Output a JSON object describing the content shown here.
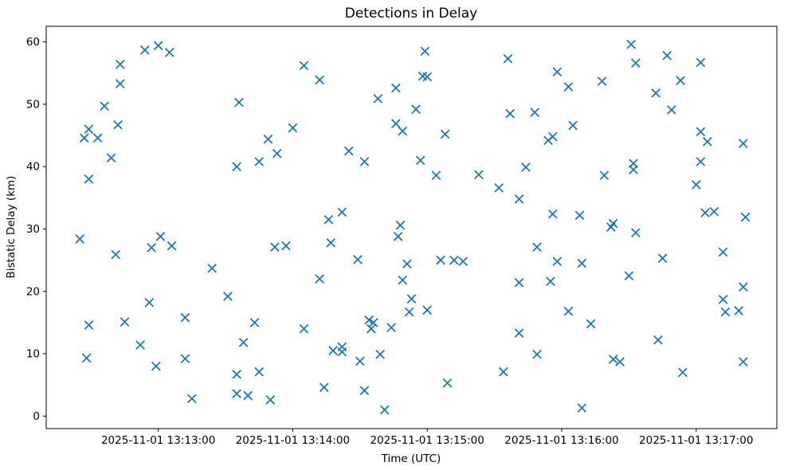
{
  "chart_data": {
    "type": "scatter",
    "title": "Detections in Delay",
    "xlabel": "Time (UTC)",
    "ylabel": "Bistatic Delay (km)",
    "date": "2025-11-01",
    "marker": "x",
    "marker_color": "#1f77b4",
    "axis_color": "#000000",
    "background_color": "#ffffff",
    "grid": false,
    "legend_position": null,
    "x_range": [
      "13:12:10",
      "13:17:36"
    ],
    "ylim": [
      -2,
      62.5
    ],
    "y_ticks": [
      0,
      10,
      20,
      30,
      40,
      50,
      60
    ],
    "x_ticks": [
      {
        "label": "2025-11-01 13:13:00",
        "time": "13:13:00"
      },
      {
        "label": "2025-11-01 13:14:00",
        "time": "13:14:00"
      },
      {
        "label": "2025-11-01 13:15:00",
        "time": "13:15:00"
      },
      {
        "label": "2025-11-01 13:16:00",
        "time": "13:16:00"
      },
      {
        "label": "2025-11-01 13:17:00",
        "time": "13:17:00"
      }
    ],
    "points": [
      [
        "13:12:54",
        58.7
      ],
      [
        "13:13:00",
        59.4
      ],
      [
        "13:13:05",
        58.3
      ],
      [
        "13:12:43",
        56.4
      ],
      [
        "13:12:43",
        53.3
      ],
      [
        "13:12:36",
        49.7
      ],
      [
        "13:13:36",
        50.3
      ],
      [
        "13:12:42",
        46.7
      ],
      [
        "13:12:29",
        46.0
      ],
      [
        "13:12:27",
        44.6
      ],
      [
        "13:12:33",
        44.6
      ],
      [
        "13:12:39",
        41.4
      ],
      [
        "13:12:29",
        38.0
      ],
      [
        "13:13:49",
        44.4
      ],
      [
        "13:13:53",
        42.1
      ],
      [
        "13:13:45",
        40.8
      ],
      [
        "13:13:35",
        40.0
      ],
      [
        "13:14:59",
        58.5
      ],
      [
        "13:15:36",
        57.3
      ],
      [
        "13:14:05",
        56.2
      ],
      [
        "13:14:12",
        53.9
      ],
      [
        "13:14:58",
        54.5
      ],
      [
        "13:15:00",
        54.4
      ],
      [
        "13:14:46",
        52.6
      ],
      [
        "13:14:38",
        50.9
      ],
      [
        "13:14:55",
        49.2
      ],
      [
        "13:15:37",
        48.5
      ],
      [
        "13:14:46",
        46.9
      ],
      [
        "13:14:49",
        45.7
      ],
      [
        "13:14:00",
        46.2
      ],
      [
        "13:15:08",
        45.2
      ],
      [
        "13:14:25",
        42.5
      ],
      [
        "13:14:32",
        40.8
      ],
      [
        "13:14:57",
        41.0
      ],
      [
        "13:15:04",
        38.6
      ],
      [
        "13:15:23",
        38.7
      ],
      [
        "13:15:44",
        39.9
      ],
      [
        "13:15:32",
        36.6
      ],
      [
        "13:15:41",
        34.8
      ],
      [
        "13:14:22",
        32.7
      ],
      [
        "13:14:16",
        31.5
      ],
      [
        "13:14:48",
        30.6
      ],
      [
        "13:16:31",
        59.6
      ],
      [
        "13:16:47",
        57.8
      ],
      [
        "13:17:02",
        56.7
      ],
      [
        "13:16:33",
        56.6
      ],
      [
        "13:15:58",
        55.2
      ],
      [
        "13:16:18",
        53.7
      ],
      [
        "13:16:53",
        53.8
      ],
      [
        "13:16:03",
        52.8
      ],
      [
        "13:16:42",
        51.8
      ],
      [
        "13:16:49",
        49.1
      ],
      [
        "13:15:48",
        48.7
      ],
      [
        "13:16:05",
        46.6
      ],
      [
        "13:15:56",
        44.8
      ],
      [
        "13:15:54",
        44.2
      ],
      [
        "13:17:02",
        45.6
      ],
      [
        "13:17:05",
        44.0
      ],
      [
        "13:17:21",
        43.7
      ],
      [
        "13:16:32",
        40.5
      ],
      [
        "13:16:32",
        39.5
      ],
      [
        "13:17:02",
        40.8
      ],
      [
        "13:16:19",
        38.6
      ],
      [
        "13:17:00",
        37.1
      ],
      [
        "13:15:56",
        32.4
      ],
      [
        "13:16:08",
        32.2
      ],
      [
        "13:17:04",
        32.6
      ],
      [
        "13:17:08",
        32.8
      ],
      [
        "13:17:22",
        31.9
      ],
      [
        "13:12:25",
        28.4
      ],
      [
        "13:13:01",
        28.8
      ],
      [
        "13:12:57",
        27.0
      ],
      [
        "13:13:06",
        27.3
      ],
      [
        "13:12:41",
        25.9
      ],
      [
        "13:13:52",
        27.1
      ],
      [
        "13:13:57",
        27.3
      ],
      [
        "13:13:24",
        23.7
      ],
      [
        "13:13:31",
        19.2
      ],
      [
        "13:12:56",
        18.2
      ],
      [
        "13:13:12",
        15.8
      ],
      [
        "13:12:45",
        15.1
      ],
      [
        "13:12:29",
        14.6
      ],
      [
        "13:13:43",
        15.0
      ],
      [
        "13:13:38",
        11.8
      ],
      [
        "13:12:52",
        11.4
      ],
      [
        "13:12:28",
        9.3
      ],
      [
        "13:13:12",
        9.2
      ],
      [
        "13:12:59",
        8.0
      ],
      [
        "13:13:35",
        6.7
      ],
      [
        "13:13:45",
        7.1
      ],
      [
        "13:13:35",
        3.6
      ],
      [
        "13:13:40",
        3.3
      ],
      [
        "13:13:15",
        2.8
      ],
      [
        "13:13:50",
        2.6
      ],
      [
        "13:14:47",
        28.8
      ],
      [
        "13:14:17",
        27.8
      ],
      [
        "13:14:29",
        25.1
      ],
      [
        "13:14:51",
        24.4
      ],
      [
        "13:15:06",
        25.0
      ],
      [
        "13:15:12",
        25.0
      ],
      [
        "13:15:16",
        24.8
      ],
      [
        "13:14:12",
        22.0
      ],
      [
        "13:14:49",
        21.8
      ],
      [
        "13:15:41",
        21.4
      ],
      [
        "13:14:53",
        18.8
      ],
      [
        "13:14:52",
        16.7
      ],
      [
        "13:15:00",
        17.0
      ],
      [
        "13:14:34",
        15.4
      ],
      [
        "13:14:36",
        15.0
      ],
      [
        "13:14:35",
        14.0
      ],
      [
        "13:14:44",
        14.2
      ],
      [
        "13:14:05",
        14.0
      ],
      [
        "13:15:41",
        13.3
      ],
      [
        "13:14:18",
        10.5
      ],
      [
        "13:14:22",
        11.1
      ],
      [
        "13:14:22",
        10.3
      ],
      [
        "13:14:39",
        9.9
      ],
      [
        "13:14:30",
        8.8
      ],
      [
        "13:15:34",
        7.1
      ],
      [
        "13:15:09",
        5.3
      ],
      [
        "13:14:14",
        4.6
      ],
      [
        "13:14:32",
        4.1
      ],
      [
        "13:14:41",
        1.0
      ],
      [
        "13:16:22",
        30.3
      ],
      [
        "13:16:23",
        30.9
      ],
      [
        "13:16:33",
        29.4
      ],
      [
        "13:15:49",
        27.1
      ],
      [
        "13:15:58",
        24.8
      ],
      [
        "13:16:09",
        24.5
      ],
      [
        "13:16:45",
        25.3
      ],
      [
        "13:17:12",
        26.3
      ],
      [
        "13:16:30",
        22.5
      ],
      [
        "13:15:55",
        21.6
      ],
      [
        "13:17:21",
        20.7
      ],
      [
        "13:17:12",
        18.7
      ],
      [
        "13:17:13",
        16.7
      ],
      [
        "13:17:19",
        16.9
      ],
      [
        "13:16:03",
        16.8
      ],
      [
        "13:16:13",
        14.8
      ],
      [
        "13:16:43",
        12.2
      ],
      [
        "13:15:49",
        9.9
      ],
      [
        "13:16:23",
        9.1
      ],
      [
        "13:16:26",
        8.7
      ],
      [
        "13:16:54",
        7.0
      ],
      [
        "13:17:21",
        8.7
      ],
      [
        "13:16:09",
        1.3
      ]
    ]
  }
}
